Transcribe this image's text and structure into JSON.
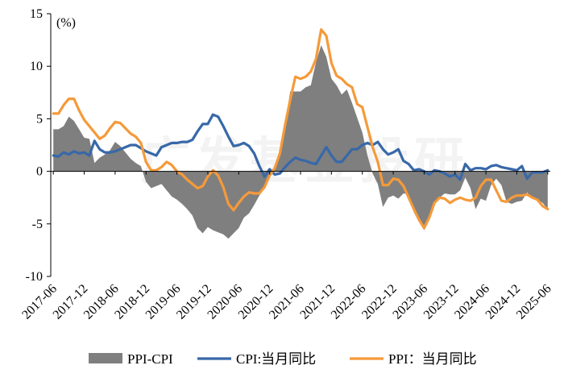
{
  "chart_data": {
    "type": "line",
    "unit_label": "(%)",
    "ylim": [
      -10,
      15
    ],
    "y_ticks": [
      15,
      10,
      5,
      0,
      -5,
      -10
    ],
    "x_tick_labels": [
      "2017-06",
      "2017-12",
      "2018-06",
      "2018-12",
      "2019-06",
      "2019-12",
      "2020-06",
      "2020-12",
      "2021-06",
      "2021-12",
      "2022-06",
      "2022-12",
      "2023-06",
      "2023-12",
      "2024-06",
      "2024-12",
      "2025-06"
    ],
    "watermark": "广发基金投研",
    "x": [
      "2017-06",
      "2017-07",
      "2017-08",
      "2017-09",
      "2017-10",
      "2017-11",
      "2017-12",
      "2018-01",
      "2018-02",
      "2018-03",
      "2018-04",
      "2018-05",
      "2018-06",
      "2018-07",
      "2018-08",
      "2018-09",
      "2018-10",
      "2018-11",
      "2018-12",
      "2019-01",
      "2019-02",
      "2019-03",
      "2019-04",
      "2019-05",
      "2019-06",
      "2019-07",
      "2019-08",
      "2019-09",
      "2019-10",
      "2019-11",
      "2019-12",
      "2020-01",
      "2020-02",
      "2020-03",
      "2020-04",
      "2020-05",
      "2020-06",
      "2020-07",
      "2020-08",
      "2020-09",
      "2020-10",
      "2020-11",
      "2020-12",
      "2021-01",
      "2021-02",
      "2021-03",
      "2021-04",
      "2021-05",
      "2021-06",
      "2021-07",
      "2021-08",
      "2021-09",
      "2021-10",
      "2021-11",
      "2021-12",
      "2022-01",
      "2022-02",
      "2022-03",
      "2022-04",
      "2022-05",
      "2022-06",
      "2022-07",
      "2022-08",
      "2022-09",
      "2022-10",
      "2022-11",
      "2022-12",
      "2023-01",
      "2023-02",
      "2023-03",
      "2023-04",
      "2023-05",
      "2023-06",
      "2023-07",
      "2023-08",
      "2023-09",
      "2023-10",
      "2023-11",
      "2023-12",
      "2024-01",
      "2024-02",
      "2024-03",
      "2024-04",
      "2024-05",
      "2024-06",
      "2024-07",
      "2024-08",
      "2024-09",
      "2024-10",
      "2024-11",
      "2024-12",
      "2025-01",
      "2025-02",
      "2025-03",
      "2025-04",
      "2025-05",
      "2025-06"
    ],
    "series": [
      {
        "name": "PPI-CPI",
        "kind": "area",
        "color": "#7f7f7f",
        "values": [
          4.0,
          4.0,
          4.3,
          5.2,
          4.8,
          4.0,
          3.2,
          3.1,
          0.8,
          1.3,
          1.6,
          2.0,
          2.8,
          2.4,
          1.8,
          1.2,
          0.8,
          0.5,
          -1.0,
          -1.6,
          -1.4,
          -1.2,
          -1.8,
          -2.4,
          -2.7,
          -3.1,
          -3.6,
          -4.2,
          -5.4,
          -5.9,
          -5.3,
          -5.6,
          -5.8,
          -6.0,
          -6.4,
          -5.9,
          -5.4,
          -4.4,
          -4.0,
          -3.2,
          -2.3,
          -1.6,
          -0.5,
          0.3,
          2.1,
          4.5,
          7.6,
          7.6,
          7.6,
          8.0,
          8.2,
          10.4,
          12.0,
          10.9,
          8.8,
          8.2,
          7.3,
          7.8,
          6.5,
          5.1,
          3.7,
          1.5,
          -0.2,
          -1.2,
          -3.4,
          -2.5,
          -2.3,
          -2.6,
          -2.1,
          -2.2,
          -3.9,
          -4.8,
          -5.6,
          -4.3,
          -3.1,
          -2.5,
          -2.1,
          -2.2,
          -2.2,
          -1.8,
          -0.6,
          -1.6,
          -3.6,
          -2.6,
          -2.8,
          -1.3,
          -0.7,
          -1.3,
          -2.9,
          -3.1,
          -2.9,
          -2.8,
          -2.0,
          -2.6,
          -2.7,
          -3.0,
          -3.6
        ]
      },
      {
        "name": "CPI:当月同比",
        "kind": "line",
        "color": "#3868a8",
        "values": [
          1.5,
          1.4,
          1.8,
          1.6,
          1.9,
          1.7,
          1.8,
          1.5,
          2.9,
          2.1,
          1.8,
          1.8,
          1.9,
          2.1,
          2.3,
          2.5,
          2.5,
          2.2,
          1.9,
          1.7,
          1.5,
          2.3,
          2.5,
          2.7,
          2.7,
          2.8,
          2.8,
          3.0,
          3.8,
          4.5,
          4.5,
          5.4,
          5.2,
          4.3,
          3.3,
          2.4,
          2.5,
          2.7,
          2.4,
          1.7,
          0.5,
          -0.5,
          0.2,
          -0.3,
          -0.2,
          0.4,
          0.9,
          1.3,
          1.1,
          1.0,
          0.8,
          0.7,
          1.5,
          2.3,
          1.5,
          0.9,
          0.9,
          1.5,
          2.1,
          2.1,
          2.5,
          2.7,
          2.5,
          2.8,
          2.1,
          1.6,
          1.8,
          2.1,
          1.0,
          0.7,
          0.1,
          0.2,
          0.0,
          -0.3,
          0.1,
          0.0,
          -0.2,
          -0.5,
          -0.3,
          -0.8,
          0.7,
          0.1,
          0.3,
          0.3,
          0.2,
          0.5,
          0.6,
          0.4,
          0.3,
          0.2,
          0.1,
          0.5,
          -0.7,
          -0.1,
          -0.1,
          -0.1,
          0.1
        ]
      },
      {
        "name": "PPI：当月同比",
        "kind": "line",
        "color": "#f59a3a",
        "values": [
          5.5,
          5.5,
          6.3,
          6.9,
          6.9,
          5.8,
          4.9,
          4.3,
          3.7,
          3.1,
          3.4,
          4.1,
          4.7,
          4.6,
          4.1,
          3.6,
          3.3,
          2.7,
          0.9,
          0.1,
          0.1,
          0.4,
          0.9,
          0.6,
          0.0,
          -0.3,
          -0.8,
          -1.2,
          -1.6,
          -1.4,
          -0.5,
          0.1,
          -0.4,
          -1.5,
          -3.1,
          -3.7,
          -3.0,
          -2.4,
          -2.0,
          -2.1,
          -2.1,
          -1.5,
          -0.4,
          0.3,
          1.7,
          4.4,
          6.8,
          9.0,
          8.8,
          9.0,
          9.5,
          10.7,
          13.5,
          12.9,
          10.3,
          9.1,
          8.8,
          8.3,
          8.0,
          6.4,
          6.1,
          4.2,
          2.3,
          0.9,
          -1.3,
          -1.3,
          -0.7,
          -0.8,
          -1.4,
          -2.5,
          -3.6,
          -4.6,
          -5.4,
          -4.4,
          -3.0,
          -2.5,
          -2.6,
          -3.0,
          -2.7,
          -2.5,
          -2.7,
          -2.8,
          -2.5,
          -1.4,
          -0.8,
          -0.8,
          -1.8,
          -2.8,
          -2.9,
          -2.5,
          -2.3,
          -2.3,
          -2.2,
          -2.5,
          -2.7,
          -3.3,
          -3.6
        ]
      }
    ],
    "legend": {
      "placement": "bottom",
      "items": [
        "PPI-CPI",
        "CPI:当月同比",
        "PPI：当月同比"
      ]
    }
  }
}
